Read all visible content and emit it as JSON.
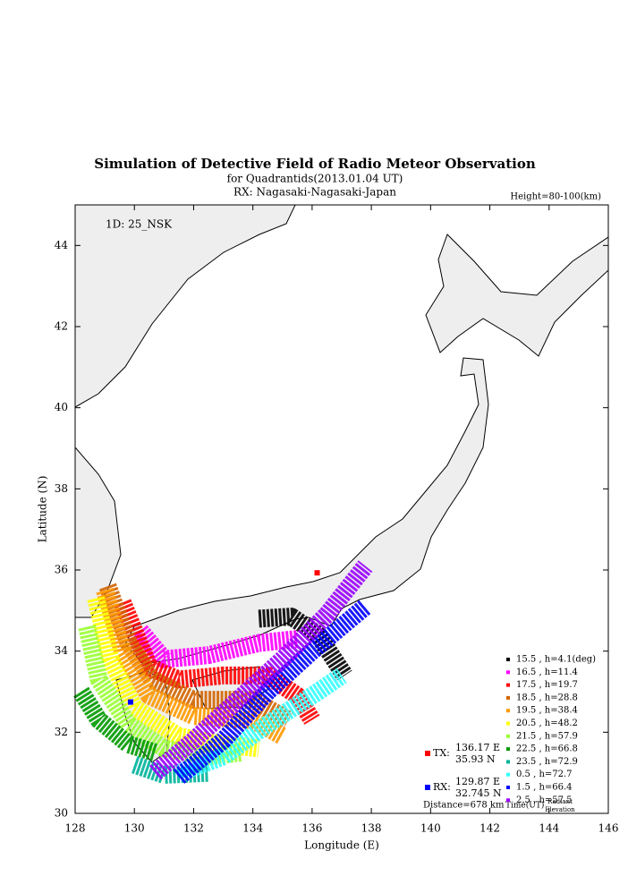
{
  "chart_data": {
    "type": "band",
    "title": "Simulation of Detective Field of Radio Meteor Observation",
    "subtitle": "for Quadrantids(2013.01.04 UT)",
    "receiver": "RX: Nagasaki-Nagasaki-Japan",
    "height_note": "Height=80-100(km)",
    "station_id": "1D: 25_NSK",
    "x_label": "Longitude (E)",
    "y_label": "Latitude (N)",
    "xlim": [
      128,
      146
    ],
    "ylim": [
      30,
      45
    ],
    "xticks": [
      128,
      130,
      132,
      134,
      136,
      138,
      140,
      142,
      144,
      146
    ],
    "yticks": [
      30,
      32,
      34,
      36,
      38,
      40,
      42,
      44
    ],
    "series": [
      {
        "name": "15.5 ,  h=4.1(deg)",
        "color": "#000000",
        "x": [
          134.2,
          135.3,
          136.2,
          137.1
        ],
        "y": [
          34.8,
          34.85,
          34.4,
          33.4
        ]
      },
      {
        "name": "16.5 ,  h=11.4",
        "color": "#ff00ff",
        "x": [
          130.2,
          131,
          132.5,
          134.2,
          135.5
        ],
        "y": [
          34.5,
          33.8,
          33.9,
          34.2,
          34.3
        ]
      },
      {
        "name": "17.5 ,  h=19.7",
        "color": "#ff0000",
        "x": [
          129.6,
          130.5,
          131.5,
          133,
          134.5,
          135.5,
          136
        ],
        "y": [
          35.2,
          33.6,
          33.3,
          33.4,
          33.4,
          32.9,
          32.3
        ]
      },
      {
        "name": "18.5 ,  h=28.8",
        "color": "#d26400",
        "x": [
          129.1,
          129.8,
          130.6,
          132,
          134,
          135.2
        ],
        "y": [
          35.6,
          34.2,
          33.3,
          32.8,
          32.8,
          32.3
        ]
      },
      {
        "name": "19.5 ,  h=38.4",
        "color": "#ff9900",
        "x": [
          129,
          129.6,
          130.5,
          132,
          134,
          135
        ],
        "y": [
          35.5,
          34,
          32.9,
          32.4,
          32.3,
          31.9
        ]
      },
      {
        "name": "20.5 ,  h=48.2",
        "color": "#ffff00",
        "x": [
          128.7,
          129.2,
          130,
          131.5,
          133,
          134.2
        ],
        "y": [
          35.3,
          33.8,
          32.6,
          31.9,
          31.7,
          31.6
        ]
      },
      {
        "name": "21.5 ,  h=57.9",
        "color": "#99ff33",
        "x": [
          128.4,
          128.8,
          129.8,
          131,
          132.5,
          133.6
        ],
        "y": [
          34.6,
          33.3,
          32.2,
          31.6,
          31.4,
          31.5
        ]
      },
      {
        "name": "22.5 ,  h=66.8",
        "color": "#009900",
        "x": [
          128.2,
          128.8,
          129.8,
          130.7
        ],
        "y": [
          33,
          32.3,
          31.7,
          31.5
        ]
      },
      {
        "name": "23.5 ,  h=72.9",
        "color": "#00b39b",
        "x": [
          130,
          131,
          132.5
        ],
        "y": [
          31.2,
          30.95,
          31
        ]
      },
      {
        "name": "0.5 ,  h=72.7",
        "color": "#33ffff",
        "x": [
          131.5,
          133,
          134.5,
          136.2,
          137
        ],
        "y": [
          31,
          31.4,
          32.2,
          33,
          33.4
        ]
      },
      {
        "name": "1.5 ,  h=66.4",
        "color": "#0000ff",
        "x": [
          131.5,
          133,
          134.5,
          136,
          137.8
        ],
        "y": [
          30.9,
          31.8,
          33,
          34,
          35.1
        ]
      },
      {
        "name": "2.5 ,  h=57.5",
        "color": "#9900ff",
        "x": [
          130.7,
          132,
          133.5,
          135,
          136.5,
          137.8
        ],
        "y": [
          31,
          31.8,
          32.8,
          33.8,
          34.9,
          36.1
        ]
      }
    ],
    "tx": {
      "label": "TX:",
      "color": "#ff0000",
      "lon": {
        "value": 136.17,
        "label": "136.17 E"
      },
      "lat": {
        "value": 35.93,
        "label": "35.93 N"
      }
    },
    "rx": {
      "label": "RX:",
      "color": "#0000ff",
      "lon": {
        "value": 129.87,
        "label": "129.87 E"
      },
      "lat": {
        "value": 32.745,
        "label": "32.745 N"
      }
    },
    "distance": "Distance=678 km",
    "legend_time_label": "Time(UT)",
    "legend_elev_label": [
      "Radiant",
      "Elevation"
    ]
  }
}
